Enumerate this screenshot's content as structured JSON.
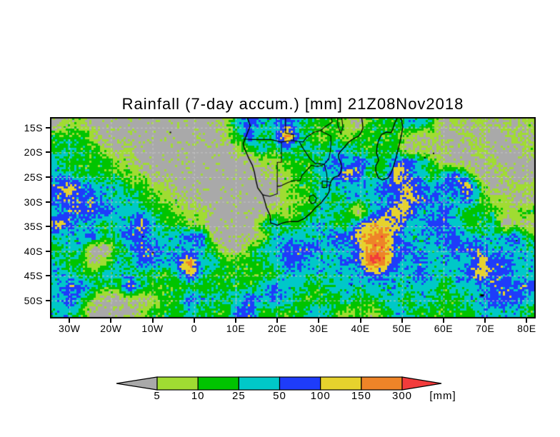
{
  "title": "Rainfall (7-day accum.) [mm] 21Z08Nov2018",
  "chart_data": {
    "type": "heatmap",
    "title": "Rainfall (7-day accum.) [mm] 21Z08Nov2018",
    "valid_time": "21Z08Nov2018",
    "quantity": "7-day accumulated rainfall",
    "unit": "mm",
    "domain": {
      "lon_min": -34.5,
      "lon_max": 82.0,
      "lat_min": -53.5,
      "lat_max": -13.0
    },
    "x_axis": {
      "ticks": [
        {
          "label": "30W",
          "lon": -30
        },
        {
          "label": "20W",
          "lon": -20
        },
        {
          "label": "10W",
          "lon": -10
        },
        {
          "label": "0",
          "lon": 0
        },
        {
          "label": "10E",
          "lon": 10
        },
        {
          "label": "20E",
          "lon": 20
        },
        {
          "label": "30E",
          "lon": 30
        },
        {
          "label": "40E",
          "lon": 40
        },
        {
          "label": "50E",
          "lon": 50
        },
        {
          "label": "60E",
          "lon": 60
        },
        {
          "label": "70E",
          "lon": 70
        },
        {
          "label": "80E",
          "lon": 80
        }
      ]
    },
    "y_axis": {
      "ticks": [
        {
          "label": "15S",
          "lat": -15
        },
        {
          "label": "20S",
          "lat": -20
        },
        {
          "label": "25S",
          "lat": -25
        },
        {
          "label": "30S",
          "lat": -30
        },
        {
          "label": "35S",
          "lat": -35
        },
        {
          "label": "40S",
          "lat": -40
        },
        {
          "label": "45S",
          "lat": -45
        },
        {
          "label": "50S",
          "lat": -50
        }
      ]
    },
    "gridlines": {
      "lat_step": 5,
      "lon_step": 10,
      "style": "dashed",
      "color": "#c6c6c6"
    },
    "thresholds_mm": [
      5,
      10,
      25,
      50,
      100,
      150,
      300
    ],
    "legend": {
      "labels": [
        "5",
        "10",
        "25",
        "50",
        "100",
        "150",
        "300"
      ],
      "unit": "[mm]",
      "colors": [
        "#a9a9a9",
        "#a0dc32",
        "#00c400",
        "#00c8c8",
        "#1e3cfa",
        "#e6d22d",
        "#ee8428",
        "#f23b3b"
      ]
    },
    "grid_cols": 40,
    "grid_rows": 16,
    "grid_legend": "each char is one cell; . = <5mm(gray) 1..7 = increasing rainfall class",
    "grid_levels": [
      ".11...........13433432221.222332.1.1.1.1",
      "2221..........1242363212122221.1..1...1.",
      "23221.1........12323232332222.1.1..1...1",
      "3222211..........112223434324432....1...",
      "33222211..........11223354225432342..1..",
      "4543332211.........12233333445434452..11",
      "44443332211........1123233334544334211..",
      "3444433322111.....1122332.34553343222112",
      "5433233532211....23223322455533443223.1.",
      "3334234433344....13333344566433344333342",
      "233..234433332..233444333466443334443333",
      "322.132443463322223443334476434333354433",
      "3322333222353222222333333344334333454433",
      "3443225322222222234332233333333323334444",
      "3431..1.12243323434322223223323322334443",
      "332....122232224422223321212332222233332"
    ]
  },
  "basemap": {
    "coastlines": [
      [
        [
          12.8,
          -13
        ],
        [
          13.5,
          -14.6
        ],
        [
          12.3,
          -17.2
        ],
        [
          11.8,
          -18.2
        ],
        [
          12.1,
          -19.2
        ],
        [
          13.2,
          -21.3
        ],
        [
          14.0,
          -22.6
        ],
        [
          14.5,
          -24.0
        ],
        [
          14.9,
          -25.8
        ],
        [
          15.3,
          -27.2
        ],
        [
          16.5,
          -28.6
        ],
        [
          17.1,
          -30.2
        ],
        [
          17.4,
          -31.2
        ],
        [
          18.3,
          -32.8
        ],
        [
          18.4,
          -34.3
        ],
        [
          19.6,
          -34.6
        ],
        [
          20.0,
          -34.8
        ],
        [
          21.0,
          -34.4
        ],
        [
          22.2,
          -34.1
        ],
        [
          23.4,
          -34.0
        ],
        [
          25.0,
          -34.0
        ],
        [
          25.7,
          -33.7
        ],
        [
          26.5,
          -33.4
        ],
        [
          27.9,
          -32.4
        ],
        [
          29.2,
          -31.2
        ],
        [
          30.5,
          -30.3
        ],
        [
          31.1,
          -29.6
        ],
        [
          32.0,
          -28.7
        ],
        [
          32.5,
          -27.9
        ],
        [
          32.6,
          -26.8
        ],
        [
          32.9,
          -25.9
        ],
        [
          33.6,
          -25.1
        ],
        [
          34.8,
          -24.7
        ],
        [
          35.3,
          -24.0
        ],
        [
          35.5,
          -23.1
        ],
        [
          35.3,
          -22.1
        ],
        [
          34.8,
          -21.2
        ],
        [
          34.7,
          -20.5
        ],
        [
          35.1,
          -19.9
        ],
        [
          36.2,
          -18.9
        ],
        [
          37.2,
          -17.9
        ],
        [
          38.4,
          -17.2
        ],
        [
          39.6,
          -16.7
        ],
        [
          40.2,
          -15.9
        ],
        [
          40.6,
          -15.1
        ],
        [
          40.5,
          -14.1
        ],
        [
          40.3,
          -13.0
        ]
      ],
      [
        [
          48.9,
          -13.0
        ],
        [
          48.2,
          -14.2
        ],
        [
          47.8,
          -15.3
        ],
        [
          47.4,
          -16.0
        ],
        [
          46.2,
          -15.9
        ],
        [
          45.1,
          -16.4
        ],
        [
          44.4,
          -17.5
        ],
        [
          44.0,
          -18.8
        ],
        [
          43.9,
          -20.2
        ],
        [
          44.4,
          -21.6
        ],
        [
          43.7,
          -22.7
        ],
        [
          43.7,
          -23.8
        ],
        [
          44.3,
          -25.2
        ],
        [
          45.3,
          -25.6
        ],
        [
          46.6,
          -25.2
        ],
        [
          47.3,
          -24.3
        ],
        [
          47.9,
          -23.0
        ],
        [
          48.5,
          -21.3
        ],
        [
          49.0,
          -19.6
        ],
        [
          49.5,
          -17.9
        ],
        [
          49.9,
          -16.3
        ],
        [
          50.2,
          -14.9
        ],
        [
          49.9,
          -13.4
        ],
        [
          49.5,
          -13.0
        ]
      ]
    ],
    "borders": [
      [
        [
          11.8,
          -17.3
        ],
        [
          14.0,
          -17.4
        ],
        [
          18.5,
          -17.4
        ],
        [
          20.9,
          -17.9
        ],
        [
          23.4,
          -17.6
        ],
        [
          25.3,
          -17.8
        ]
      ],
      [
        [
          25.3,
          -17.8
        ],
        [
          26.2,
          -17.9
        ],
        [
          27.1,
          -16.9
        ],
        [
          28.9,
          -15.9
        ],
        [
          30.4,
          -15.6
        ]
      ],
      [
        [
          22.0,
          -13.0
        ],
        [
          22.0,
          -16.1
        ],
        [
          23.9,
          -16.4
        ],
        [
          23.9,
          -17.6
        ]
      ],
      [
        [
          30.4,
          -15.6
        ],
        [
          31.5,
          -14.8
        ],
        [
          33.2,
          -13.9
        ],
        [
          33.0,
          -13.0
        ]
      ],
      [
        [
          25.3,
          -17.8
        ],
        [
          25.9,
          -18.8
        ],
        [
          27.9,
          -21.3
        ],
        [
          29.1,
          -22.2
        ],
        [
          31.3,
          -22.4
        ],
        [
          32.4,
          -21.3
        ],
        [
          32.8,
          -19.6
        ],
        [
          32.9,
          -18.1
        ],
        [
          32.9,
          -16.7
        ],
        [
          30.4,
          -15.6
        ]
      ],
      [
        [
          31.3,
          -22.4
        ],
        [
          29.7,
          -22.9
        ],
        [
          28.2,
          -22.6
        ],
        [
          27.1,
          -23.6
        ],
        [
          25.9,
          -24.7
        ],
        [
          25.5,
          -25.7
        ],
        [
          24.0,
          -25.7
        ],
        [
          22.6,
          -26.1
        ],
        [
          20.8,
          -26.8
        ],
        [
          20.0,
          -26.9
        ],
        [
          20.0,
          -28.4
        ],
        [
          18.2,
          -28.9
        ],
        [
          16.5,
          -28.6
        ]
      ],
      [
        [
          21.0,
          -18.0
        ],
        [
          21.0,
          -22.0
        ],
        [
          20.0,
          -22.0
        ],
        [
          20.0,
          -26.9
        ]
      ],
      [
        [
          31.3,
          -22.4
        ],
        [
          31.9,
          -24.3
        ],
        [
          32.0,
          -25.9
        ],
        [
          32.9,
          -26.1
        ]
      ],
      [
        [
          27.8,
          -28.9
        ],
        [
          28.7,
          -28.6
        ],
        [
          29.4,
          -29.3
        ],
        [
          29.2,
          -30.1
        ],
        [
          28.3,
          -30.4
        ],
        [
          27.7,
          -29.8
        ],
        [
          27.8,
          -28.9
        ]
      ],
      [
        [
          30.8,
          -25.8
        ],
        [
          32.0,
          -25.9
        ],
        [
          31.9,
          -27.1
        ],
        [
          30.8,
          -27.1
        ],
        [
          30.8,
          -25.8
        ]
      ],
      [
        [
          34.5,
          -13.0
        ],
        [
          34.6,
          -14.6
        ],
        [
          35.3,
          -16.2
        ],
        [
          35.8,
          -14.9
        ],
        [
          35.5,
          -13.0
        ]
      ]
    ],
    "islands": [
      [
        -5.7,
        -15.95
      ],
      [
        -12.3,
        -37.1
      ],
      [
        -9.9,
        -40.3
      ],
      [
        37.8,
        -46.9
      ],
      [
        51.8,
        -46.4
      ],
      [
        55.5,
        -21.1
      ],
      [
        57.6,
        -20.2
      ],
      [
        77.6,
        -37.9
      ]
    ],
    "kerguelen": [
      69.2,
      -48.9
    ]
  }
}
